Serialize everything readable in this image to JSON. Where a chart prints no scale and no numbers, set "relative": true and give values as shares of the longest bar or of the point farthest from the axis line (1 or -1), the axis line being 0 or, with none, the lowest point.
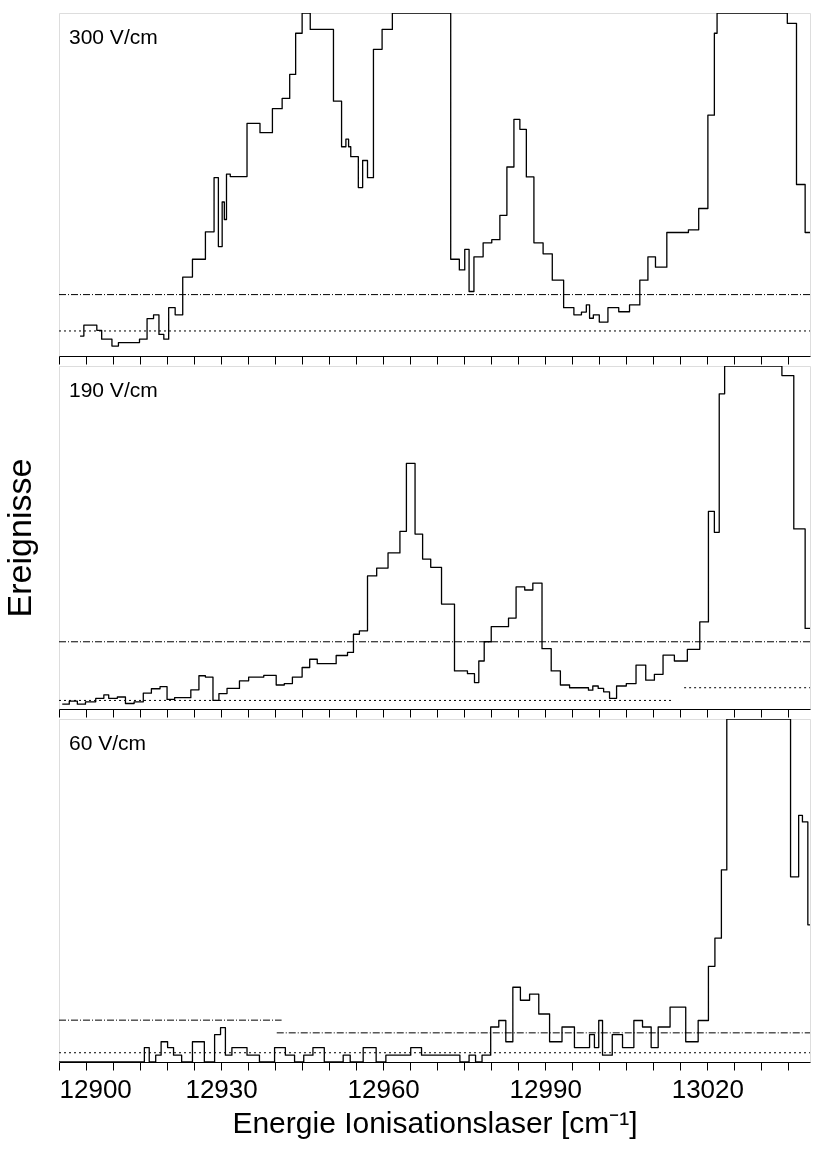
{
  "chart_data": [
    {
      "type": "step",
      "title": "300 V/cm",
      "relative": true,
      "tick_labels": false,
      "xlim": [
        12900,
        13039
      ],
      "xticks": [
        12900,
        {
          "value": 12905,
          "label": null
        },
        {
          "value": 12910,
          "label": null
        },
        {
          "value": 12915,
          "label": null
        },
        {
          "value": 12920,
          "label": null
        },
        {
          "value": 12925,
          "label": null
        },
        12930,
        {
          "value": 12935,
          "label": null
        },
        {
          "value": 12940,
          "label": null
        },
        {
          "value": 12945,
          "label": null
        },
        {
          "value": 12950,
          "label": null
        },
        {
          "value": 12955,
          "label": null
        },
        12960,
        {
          "value": 12965,
          "label": null
        },
        {
          "value": 12970,
          "label": null
        },
        {
          "value": 12975,
          "label": null
        },
        {
          "value": 12980,
          "label": null
        },
        {
          "value": 12985,
          "label": null
        },
        12990,
        {
          "value": 12995,
          "label": null
        },
        {
          "value": 13000,
          "label": null
        },
        {
          "value": 13005,
          "label": null
        },
        {
          "value": 13010,
          "label": null
        },
        {
          "value": 13015,
          "label": null
        },
        13020,
        {
          "value": 13025,
          "label": null
        },
        {
          "value": 13030,
          "label": null
        },
        {
          "value": 13035,
          "label": null
        }
      ],
      "series": [
        {
          "color": "#000000",
          "x": [
            12903.9,
            12904.6,
            12907.0,
            12907.9,
            12909.8,
            12911.0,
            12914.9,
            12916.3,
            12917.5,
            12918.5,
            12919.4,
            12920.3,
            12921.5,
            12922.9,
            12924.7,
            12927.1,
            12928.7,
            12929.5,
            12930.2,
            12930.6,
            12931.0,
            12931.7,
            12934.8,
            12937.2,
            12939.5,
            12941.3,
            12942.7,
            12943.8,
            12945.0,
            12946.5,
            12950.8,
            12952.3,
            12953.1,
            12953.6,
            12954.0,
            12955.4,
            12956.2,
            12957.1,
            12958.2,
            12959.8,
            12961.7,
            12972.5,
            12974.1,
            12975.1,
            12975.9,
            12976.8,
            12978.5,
            12980.1,
            12981.6,
            12982.9,
            12984.2,
            12985.3,
            12986.5,
            12987.9,
            12989.6,
            12991.3,
            12993.4,
            12995.3,
            12996.7,
            12997.6,
            12998.2,
            12998.9,
            13000.0,
            13001.6,
            13003.6,
            13005.6,
            13007.5,
            13009.0,
            13010.4,
            13012.5,
            13016.5,
            13018.4,
            13020.1,
            13021.3,
            13021.8,
            13034.8,
            13036.5,
            13038.1,
            13039
          ],
          "values": [
            0.058,
            0.09,
            0.075,
            0.049,
            0.029,
            0.039,
            0.049,
            0.109,
            0.12,
            0.063,
            0.049,
            0.141,
            0.12,
            0.23,
            0.282,
            0.362,
            0.52,
            0.319,
            0.449,
            0.398,
            0.53,
            0.523,
            0.678,
            0.651,
            0.721,
            0.751,
            0.821,
            0.941,
            1.0,
            0.952,
            0.743,
            0.61,
            0.632,
            0.61,
            0.581,
            0.491,
            0.57,
            0.52,
            0.894,
            0.952,
            1.0,
            0.282,
            0.251,
            0.311,
            0.188,
            0.289,
            0.33,
            0.339,
            0.41,
            0.551,
            0.69,
            0.661,
            0.522,
            0.33,
            0.298,
            0.221,
            0.141,
            0.12,
            0.128,
            0.149,
            0.11,
            0.12,
            0.099,
            0.141,
            0.129,
            0.149,
            0.221,
            0.289,
            0.259,
            0.36,
            0.368,
            0.43,
            0.702,
            0.941,
            1.0,
            0.97,
            0.5,
            0.36,
            0.36
          ]
        },
        {
          "type": "line",
          "line_style": "dashed",
          "color": "#000000",
          "x": [
            12900,
            13039
          ],
          "values": [
            0.179,
            0.179
          ]
        },
        {
          "type": "line",
          "line_style": "dotted",
          "color": "#000000",
          "x": [
            12900,
            13039
          ],
          "values": [
            0.073,
            0.073
          ]
        }
      ]
    },
    {
      "type": "step",
      "title": "190 V/cm",
      "ylabel": "Ereignisse",
      "relative": true,
      "tick_labels": false,
      "xlim": [
        12900,
        13039
      ],
      "xticks": [
        12900,
        {
          "value": 12905,
          "label": null
        },
        {
          "value": 12910,
          "label": null
        },
        {
          "value": 12915,
          "label": null
        },
        {
          "value": 12920,
          "label": null
        },
        {
          "value": 12925,
          "label": null
        },
        12930,
        {
          "value": 12935,
          "label": null
        },
        {
          "value": 12940,
          "label": null
        },
        {
          "value": 12945,
          "label": null
        },
        {
          "value": 12950,
          "label": null
        },
        {
          "value": 12955,
          "label": null
        },
        12960,
        {
          "value": 12965,
          "label": null
        },
        {
          "value": 12970,
          "label": null
        },
        {
          "value": 12975,
          "label": null
        },
        {
          "value": 12980,
          "label": null
        },
        {
          "value": 12985,
          "label": null
        },
        12990,
        {
          "value": 12995,
          "label": null
        },
        {
          "value": 13000,
          "label": null
        },
        {
          "value": 13005,
          "label": null
        },
        {
          "value": 13010,
          "label": null
        },
        {
          "value": 13015,
          "label": null
        },
        13020,
        {
          "value": 13025,
          "label": null
        },
        {
          "value": 13030,
          "label": null
        },
        {
          "value": 13035,
          "label": null
        }
      ],
      "series": [
        {
          "color": "#000000",
          "x": [
            12900.6,
            12901.9,
            12903.4,
            12904.9,
            12906.8,
            12908.3,
            12909.2,
            12910.8,
            12912.3,
            12913.9,
            12915.6,
            12917.1,
            12918.7,
            12920.0,
            12921.4,
            12924.4,
            12925.9,
            12927.1,
            12928.5,
            12929.6,
            12931.1,
            12933.4,
            12935.1,
            12937.9,
            12940.2,
            12941.7,
            12943.2,
            12945.0,
            12946.4,
            12947.8,
            12951.3,
            12953.4,
            12954.5,
            12955.6,
            12957.1,
            12958.8,
            12960.9,
            12963.1,
            12964.3,
            12965.9,
            12967.3,
            12968.8,
            12970.8,
            12973.2,
            12975.6,
            12976.9,
            12977.7,
            12978.7,
            12980.0,
            12983.2,
            12984.6,
            12986.2,
            12987.7,
            12989.4,
            12991.1,
            12992.8,
            12994.5,
            12998.0,
            12998.8,
            12999.8,
            13000.8,
            13001.9,
            13003.2,
            13005.0,
            13006.8,
            13008.6,
            13010.2,
            13011.8,
            13013.9,
            13016.3,
            13018.6,
            13020.2,
            13021.3,
            13022.2,
            13023.2,
            13033.8,
            13036.0,
            13038.1,
            13039
          ],
          "values": [
            0.014,
            0.023,
            0.014,
            0.021,
            0.031,
            0.041,
            0.031,
            0.035,
            0.016,
            0.021,
            0.046,
            0.059,
            0.065,
            0.028,
            0.033,
            0.056,
            0.097,
            0.093,
            0.025,
            0.045,
            0.06,
            0.082,
            0.093,
            0.098,
            0.07,
            0.074,
            0.093,
            0.121,
            0.145,
            0.132,
            0.156,
            0.165,
            0.218,
            0.228,
            0.388,
            0.411,
            0.455,
            0.518,
            0.716,
            0.51,
            0.437,
            0.413,
            0.306,
            0.111,
            0.103,
            0.077,
            0.14,
            0.196,
            0.24,
            0.265,
            0.356,
            0.347,
            0.367,
            0.176,
            0.111,
            0.07,
            0.062,
            0.055,
            0.067,
            0.06,
            0.05,
            0.031,
            0.067,
            0.074,
            0.128,
            0.084,
            0.101,
            0.157,
            0.14,
            0.174,
            0.254,
            0.576,
            0.515,
            0.919,
            1.0,
            0.972,
            0.525,
            0.235,
            0.235
          ]
        },
        {
          "type": "line",
          "line_style": "dashed",
          "color": "#000000",
          "x": [
            12900,
            13039
          ],
          "values": [
            0.196,
            0.196
          ]
        },
        {
          "type": "line",
          "line_style": "dotted",
          "color": "#000000",
          "x": [
            12900,
            13013.6
          ],
          "values": [
            0.025,
            0.025
          ]
        },
        {
          "type": "line",
          "line_style": "dotted",
          "color": "#000000",
          "x": [
            13015.7,
            13039
          ],
          "values": [
            0.062,
            0.062
          ]
        }
      ]
    },
    {
      "type": "step",
      "title": "60 V/cm",
      "xlabel": "Energie Ionisationslaser [cm⁻¹]",
      "relative": true,
      "xlim": [
        12900,
        13039
      ],
      "xticks": [
        12900,
        {
          "value": 12905,
          "label": null
        },
        {
          "value": 12910,
          "label": null
        },
        {
          "value": 12915,
          "label": null
        },
        {
          "value": 12920,
          "label": null
        },
        {
          "value": 12925,
          "label": null
        },
        12930,
        {
          "value": 12935,
          "label": null
        },
        {
          "value": 12940,
          "label": null
        },
        {
          "value": 12945,
          "label": null
        },
        {
          "value": 12950,
          "label": null
        },
        {
          "value": 12955,
          "label": null
        },
        12960,
        {
          "value": 12965,
          "label": null
        },
        {
          "value": 12970,
          "label": null
        },
        {
          "value": 12975,
          "label": null
        },
        {
          "value": 12980,
          "label": null
        },
        {
          "value": 12985,
          "label": null
        },
        12990,
        {
          "value": 12995,
          "label": null
        },
        {
          "value": 13000,
          "label": null
        },
        {
          "value": 13005,
          "label": null
        },
        {
          "value": 13010,
          "label": null
        },
        {
          "value": 13015,
          "label": null
        },
        13020,
        {
          "value": 13025,
          "label": null
        },
        {
          "value": 13030,
          "label": null
        },
        {
          "value": 13035,
          "label": null
        }
      ],
      "series": [
        {
          "color": "#000000",
          "x": [
            12900,
            12915.8,
            12916.7,
            12917.9,
            12918.9,
            12920.1,
            12921.2,
            12922.7,
            12924.7,
            12926.9,
            12928.8,
            12929.9,
            12930.8,
            12932.0,
            12934.8,
            12937.1,
            12939.9,
            12941.9,
            12943.6,
            12945.3,
            12947.0,
            12949.1,
            12952.6,
            12953.9,
            12956.3,
            12958.7,
            12960.5,
            12965.1,
            12967.1,
            12974.2,
            12975.9,
            12977.1,
            12978.3,
            12979.9,
            12981.4,
            12982.7,
            12984.0,
            12985.4,
            12987.1,
            12988.8,
            12990.8,
            12993.1,
            12995.4,
            12998.2,
            12999.1,
            12999.9,
            13000.6,
            13002.4,
            13004.3,
            13006.4,
            13008.0,
            13009.6,
            13010.9,
            13013.1,
            13016.0,
            13018.3,
            13020.2,
            13021.4,
            13022.6,
            13023.6,
            13035.4,
            13036.9,
            13037.6,
            13038.6,
            13039
          ],
          "values": [
            0,
            0.042,
            0,
            0.02,
            0.059,
            0.042,
            0.02,
            0,
            0.059,
            0,
            0.08,
            0.1,
            0.02,
            0.042,
            0.02,
            0,
            0.042,
            0.02,
            0,
            0.02,
            0.042,
            0,
            0.02,
            0,
            0.042,
            0,
            0.02,
            0.042,
            0.02,
            0,
            0.02,
            0,
            0.02,
            0.102,
            0.121,
            0.059,
            0.218,
            0.18,
            0.198,
            0.14,
            0.059,
            0.102,
            0.042,
            0.08,
            0.042,
            0.121,
            0.02,
            0.08,
            0.042,
            0.121,
            0.102,
            0.042,
            0.102,
            0.16,
            0.059,
            0.121,
            0.279,
            0.361,
            0.56,
            1.0,
            0.54,
            0.719,
            0.7,
            0.4,
            0.4
          ]
        },
        {
          "type": "line",
          "line_style": "dashed",
          "color": "#000000",
          "x": [
            12900,
            12941.2
          ],
          "values": [
            0.122,
            0.122
          ]
        },
        {
          "type": "line",
          "line_style": "dashed",
          "color": "#000000",
          "x": [
            12940.3,
            13039
          ],
          "values": [
            0.085,
            0.085
          ]
        },
        {
          "type": "line",
          "line_style": "dotted",
          "color": "#000000",
          "x": [
            12900,
            13039
          ],
          "values": [
            0.027,
            0.027
          ]
        }
      ]
    }
  ]
}
